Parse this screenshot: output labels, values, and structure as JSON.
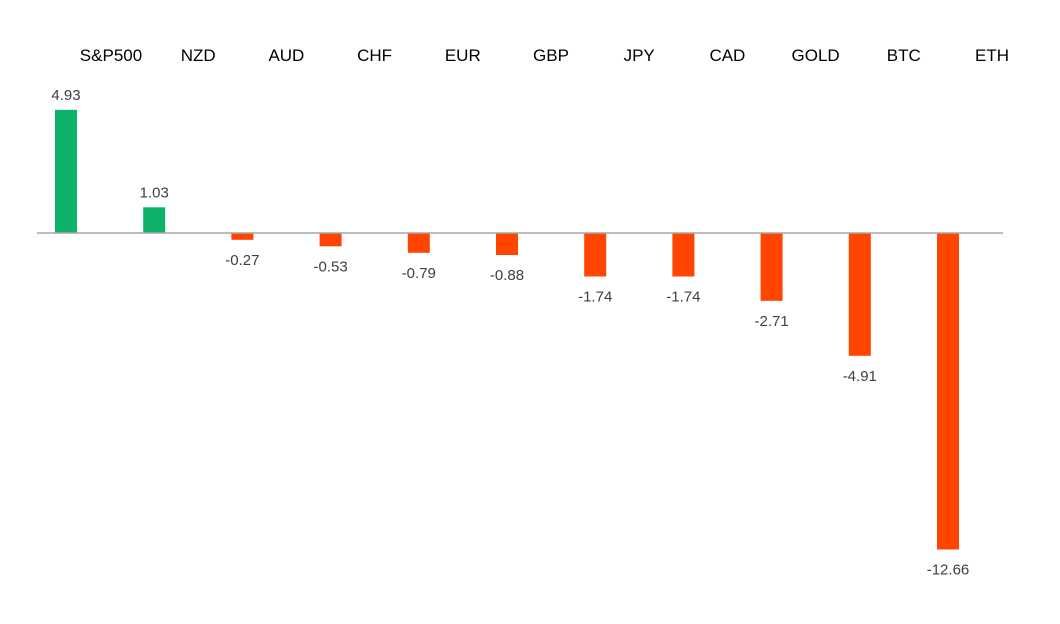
{
  "chart_data": {
    "type": "bar",
    "categories": [
      "S&P500",
      "NZD",
      "AUD",
      "CHF",
      "EUR",
      "GBP",
      "JPY",
      "CAD",
      "GOLD",
      "BTC",
      "ETH"
    ],
    "values": [
      4.93,
      1.03,
      -0.27,
      -0.53,
      -0.79,
      -0.88,
      -1.74,
      -1.74,
      -2.71,
      -4.91,
      -12.66
    ],
    "value_labels": [
      "4.93",
      "1.03",
      "-0.27",
      "-0.53",
      "-0.79",
      "-0.88",
      "-1.74",
      "-1.74",
      "-2.71",
      "-4.91",
      "-12.66"
    ],
    "title": "",
    "xlabel": "",
    "ylabel": "",
    "ylim": [
      -12.66,
      4.93
    ],
    "grid": false,
    "legend": "none",
    "category_axis_position": "top",
    "colors": {
      "positive": "#0fb26b",
      "negative": "#ff4500",
      "axis": "#a6a6a6"
    }
  }
}
